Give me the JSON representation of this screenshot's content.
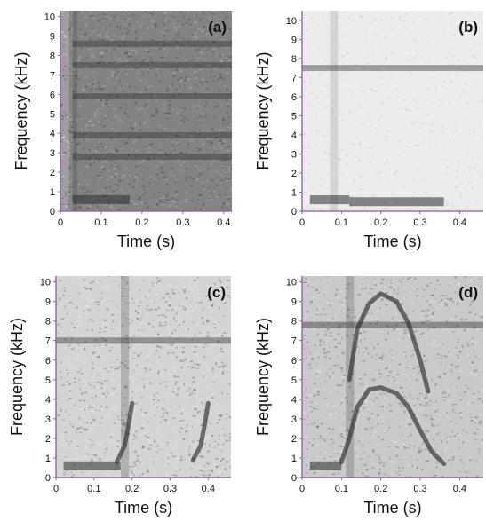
{
  "chart_data": [
    {
      "type": "heatmap",
      "label": "(a)",
      "xlabel": "Time (s)",
      "ylabel": "Frequency (kHz)",
      "xlim": [
        0,
        0.42
      ],
      "ylim": [
        0,
        10.3
      ],
      "x_ticks": [
        0,
        0.1,
        0.2,
        0.3,
        0.4
      ],
      "y_ticks": [
        0,
        1,
        2,
        3,
        4,
        5,
        6,
        7,
        8,
        9,
        10
      ],
      "bands": [
        {
          "x": [
            0.03,
            0.42
          ],
          "y": 5.9
        },
        {
          "x": [
            0.03,
            0.42
          ],
          "y": 7.5
        },
        {
          "x": [
            0.03,
            0.42
          ],
          "y": 8.6
        },
        {
          "x": [
            0.03,
            0.42
          ],
          "y": 3.9
        },
        {
          "x": [
            0.03,
            0.42
          ],
          "y": 2.8
        },
        {
          "x": [
            0.03,
            0.17
          ],
          "y": 0.6
        }
      ],
      "onset_x": 0.03
    },
    {
      "type": "heatmap",
      "label": "(b)",
      "xlabel": "Time (s)",
      "ylabel": "Frequency (kHz)",
      "xlim": [
        0,
        0.46
      ],
      "ylim": [
        0,
        10.5
      ],
      "x_ticks": [
        0,
        0.1,
        0.2,
        0.3,
        0.4
      ],
      "y_ticks": [
        0,
        1,
        2,
        3,
        4,
        5,
        6,
        7,
        8,
        9,
        10
      ],
      "bands": [
        {
          "x": [
            0,
            0.46
          ],
          "y": 7.5
        },
        {
          "x": [
            0.02,
            0.12
          ],
          "y": 0.6
        },
        {
          "x": [
            0.12,
            0.36
          ],
          "y": 0.5
        }
      ],
      "onset_x": 0.08
    },
    {
      "type": "heatmap",
      "label": "(c)",
      "xlabel": "Time (s)",
      "ylabel": "Frequency (kHz)",
      "xlim": [
        0,
        0.46
      ],
      "ylim": [
        0,
        10.3
      ],
      "x_ticks": [
        0,
        0.1,
        0.2,
        0.3,
        0.4
      ],
      "y_ticks": [
        0,
        1,
        2,
        3,
        4,
        5,
        6,
        7,
        8,
        9,
        10
      ],
      "bands": [
        {
          "x": [
            0,
            0.46
          ],
          "y": 7.0
        },
        {
          "x": [
            0.02,
            0.17
          ],
          "y": 0.6
        }
      ],
      "onset_x": 0.18,
      "calls": [
        {
          "t": [
            0.16,
            0.18,
            0.19,
            0.2
          ],
          "f": [
            0.8,
            1.6,
            2.6,
            3.8
          ]
        },
        {
          "t": [
            0.36,
            0.38,
            0.39,
            0.4
          ],
          "f": [
            0.9,
            1.6,
            2.6,
            3.8
          ]
        }
      ]
    },
    {
      "type": "heatmap",
      "label": "(d)",
      "xlabel": "Time (s)",
      "ylabel": "Frequency (kHz)",
      "xlim": [
        0,
        0.46
      ],
      "ylim": [
        0,
        10.3
      ],
      "x_ticks": [
        0,
        0.1,
        0.2,
        0.3,
        0.4
      ],
      "y_ticks": [
        0,
        1,
        2,
        3,
        4,
        5,
        6,
        7,
        8,
        9,
        10
      ],
      "bands": [
        {
          "x": [
            0,
            0.46
          ],
          "y": 7.8
        },
        {
          "x": [
            0.02,
            0.1
          ],
          "y": 0.6
        }
      ],
      "onset_x": 0.12,
      "calls": [
        {
          "t": [
            0.1,
            0.12,
            0.14,
            0.17,
            0.2,
            0.24,
            0.27,
            0.3,
            0.33,
            0.36
          ],
          "f": [
            0.8,
            2.0,
            3.6,
            4.5,
            4.6,
            4.3,
            3.6,
            2.4,
            1.3,
            0.7
          ]
        },
        {
          "t": [
            0.12,
            0.14,
            0.17,
            0.2,
            0.24,
            0.27,
            0.3,
            0.32
          ],
          "f": [
            5.0,
            7.6,
            8.9,
            9.4,
            9.0,
            7.9,
            6.0,
            4.4
          ]
        }
      ]
    }
  ]
}
